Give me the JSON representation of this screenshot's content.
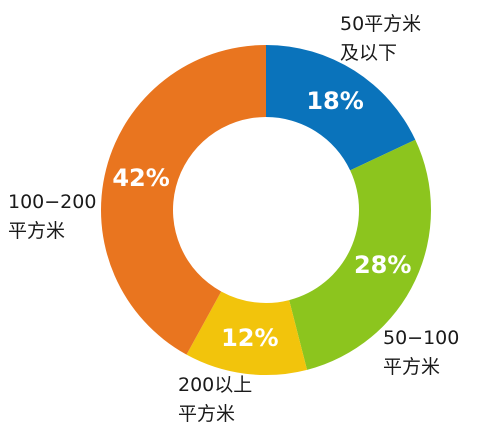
{
  "chart_data": {
    "type": "pie",
    "donut": true,
    "slices": [
      {
        "label_line1": "50平方米",
        "label_line2": "及以下",
        "value": 18,
        "display": "18%",
        "color": "#0a73bb"
      },
      {
        "label_line1": "50−100",
        "label_line2": "平方米",
        "value": 28,
        "display": "28%",
        "color": "#8cc51e"
      },
      {
        "label_line1": "200以上",
        "label_line2": "平方米",
        "value": 12,
        "display": "12%",
        "color": "#f2c40c"
      },
      {
        "label_line1": "100−200",
        "label_line2": "平方米",
        "value": 42,
        "display": "42%",
        "color": "#e9751f"
      }
    ]
  }
}
